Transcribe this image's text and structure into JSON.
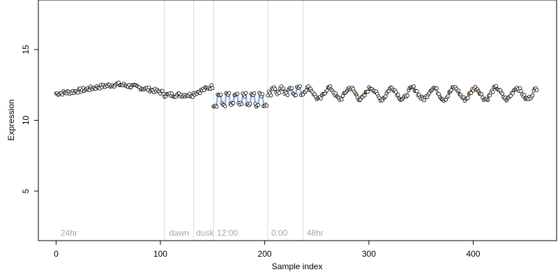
{
  "chart_data": {
    "type": "scatter",
    "title": "",
    "xlabel": "Sample index",
    "ylabel": "Expression",
    "xlim": [
      -17,
      480
    ],
    "ylim": [
      1.5,
      18.5
    ],
    "xticks": [
      0,
      100,
      200,
      300,
      400
    ],
    "yticks": [
      5,
      10,
      15
    ],
    "grid": false,
    "colors": {
      "point_fill": "#ffffff",
      "point_stroke": "#000000",
      "highlight_fill": "#f4a460",
      "blue_line": "#7fa8d8",
      "orange_line": "#f4a460",
      "boundary_line": "#d9d9d9",
      "label": "#a6a6a6"
    },
    "boundaries": [
      104,
      132,
      151,
      203,
      237
    ],
    "region_labels": [
      {
        "text": "24hr",
        "x": 3
      },
      {
        "text": "dawn",
        "x": 107
      },
      {
        "text": "dusk",
        "x": 133
      },
      {
        "text": "12:00",
        "x": 153
      },
      {
        "text": "0:00",
        "x": 205
      },
      {
        "text": "48hr",
        "x": 239
      }
    ],
    "n_points": 462,
    "series": [
      {
        "segment": "24hr",
        "x_range": [
          0,
          103
        ],
        "shape": "smooth",
        "values_y": [
          11.9,
          12.0,
          12.2,
          12.4,
          12.55,
          12.4,
          12.2,
          11.95
        ]
      },
      {
        "segment": "dawn",
        "x_range": [
          104,
          131
        ],
        "shape": "flat",
        "mean_y": 11.8
      },
      {
        "segment": "dusk",
        "x_range": [
          132,
          150
        ],
        "shape": "rise",
        "values_y": [
          11.9,
          12.4
        ]
      },
      {
        "segment": "12:00",
        "x_range": [
          151,
          202
        ],
        "shape": "step",
        "low_y": 11.1,
        "high_y": 11.8
      },
      {
        "segment": "0:00",
        "x_range": [
          203,
          236
        ],
        "shape": "step",
        "low_y": 11.9,
        "high_y": 12.3
      },
      {
        "segment": "48hr",
        "x_range": [
          237,
          461
        ],
        "shape": "oscillating",
        "mean_y": 11.9,
        "amplitude": 0.4,
        "period": 20
      }
    ]
  }
}
